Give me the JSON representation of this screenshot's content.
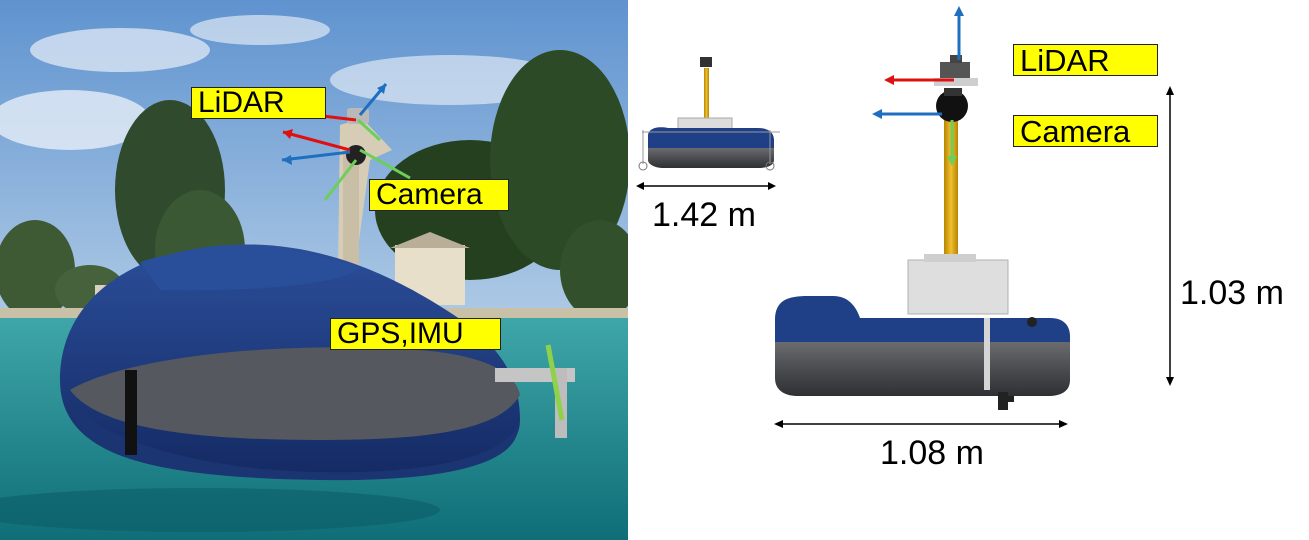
{
  "photo": {
    "labels": {
      "lidar": "LiDAR",
      "camera": "Camera",
      "gps_imu": "GPS,IMU"
    }
  },
  "diagram": {
    "labels": {
      "lidar": "LiDAR",
      "camera": "Camera"
    },
    "dimensions": {
      "small_width": "1.42 m",
      "width": "1.08 m",
      "height": "1.03 m"
    }
  },
  "colors": {
    "label_background": "#ffff00",
    "hull_blue": "#1f3f86",
    "hull_gray": "#4d4f55",
    "axis_red": "#e01010",
    "axis_blue": "#1f6fc0",
    "axis_green": "#6ccf5a",
    "mast_yellow": "#e0a800"
  }
}
